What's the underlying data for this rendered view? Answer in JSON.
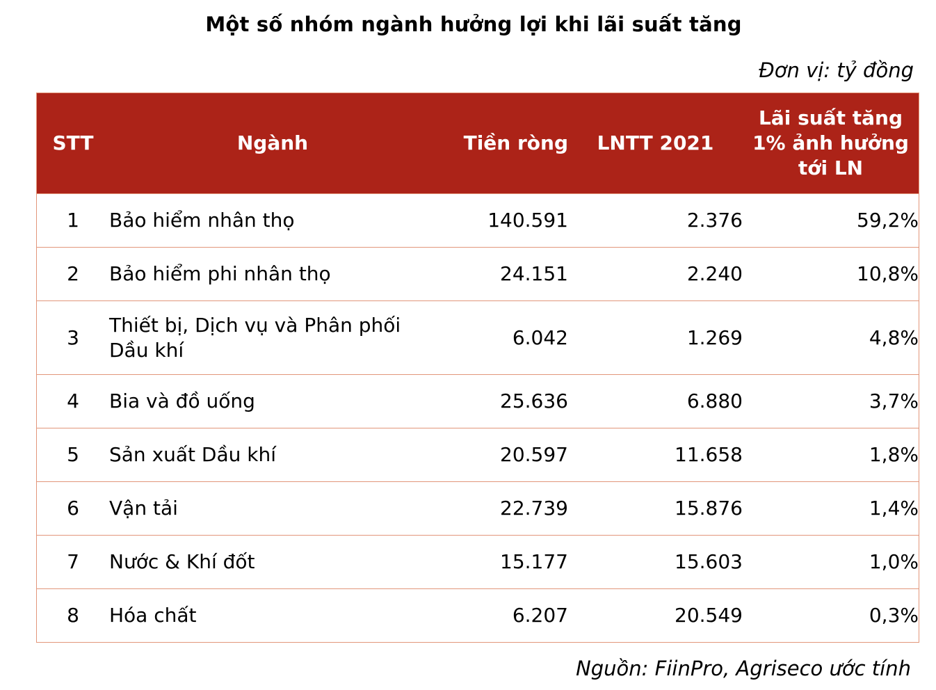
{
  "title": "Một số nhóm ngành hưởng lợi khi lãi suất tăng",
  "unit": "Đơn vị: tỷ đồng",
  "headers": {
    "stt": "STT",
    "sector": "Ngành",
    "net": "Tiền ròng",
    "pbt": "LNTT 2021",
    "impact": "Lãi suất tăng 1% ảnh hưởng tới LN"
  },
  "rows": [
    {
      "stt": "1",
      "sector": "Bảo hiểm nhân thọ",
      "net": "140.591",
      "pbt": "2.376",
      "impact": "59,2%"
    },
    {
      "stt": "2",
      "sector": "Bảo hiểm phi nhân thọ",
      "net": "24.151",
      "pbt": "2.240",
      "impact": "10,8%"
    },
    {
      "stt": "3",
      "sector": "Thiết bị, Dịch vụ và Phân phối Dầu khí",
      "net": "6.042",
      "pbt": "1.269",
      "impact": "4,8%"
    },
    {
      "stt": "4",
      "sector": "Bia và đồ uống",
      "net": "25.636",
      "pbt": "6.880",
      "impact": "3,7%"
    },
    {
      "stt": "5",
      "sector": "Sản xuất Dầu khí",
      "net": "20.597",
      "pbt": "11.658",
      "impact": "1,8%"
    },
    {
      "stt": "6",
      "sector": "Vận tải",
      "net": "22.739",
      "pbt": "15.876",
      "impact": "1,4%"
    },
    {
      "stt": "7",
      "sector": "Nước & Khí đốt",
      "net": "15.177",
      "pbt": "15.603",
      "impact": "1,0%"
    },
    {
      "stt": "8",
      "sector": "Hóa chất",
      "net": "6.207",
      "pbt": "20.549",
      "impact": "0,3%"
    }
  ],
  "source": "Nguồn: FiinPro, Agriseco ước tính",
  "colors": {
    "header_bg": "#ac2318",
    "border": "#e2967a"
  }
}
